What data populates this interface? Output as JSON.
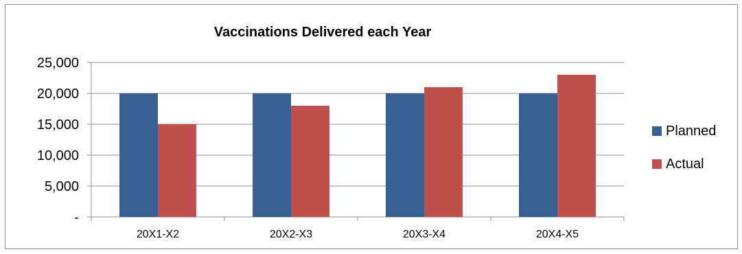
{
  "chart_data": {
    "type": "bar",
    "title": "Vaccinations Delivered each Year",
    "categories": [
      "20X1-X2",
      "20X2-X3",
      "20X3-X4",
      "20X4-X5"
    ],
    "series": [
      {
        "name": "Planned",
        "values": [
          20000,
          20000,
          20000,
          20000
        ],
        "color": "#376092"
      },
      {
        "name": "Actual",
        "values": [
          15000,
          18000,
          21000,
          23000
        ],
        "color": "#c0504d"
      }
    ],
    "yticks": [
      "-",
      "5,000",
      "10,000",
      "15,000",
      "20,000",
      "25,000"
    ],
    "ylim": [
      0,
      25000
    ],
    "grid": true,
    "legend_position": "right"
  }
}
